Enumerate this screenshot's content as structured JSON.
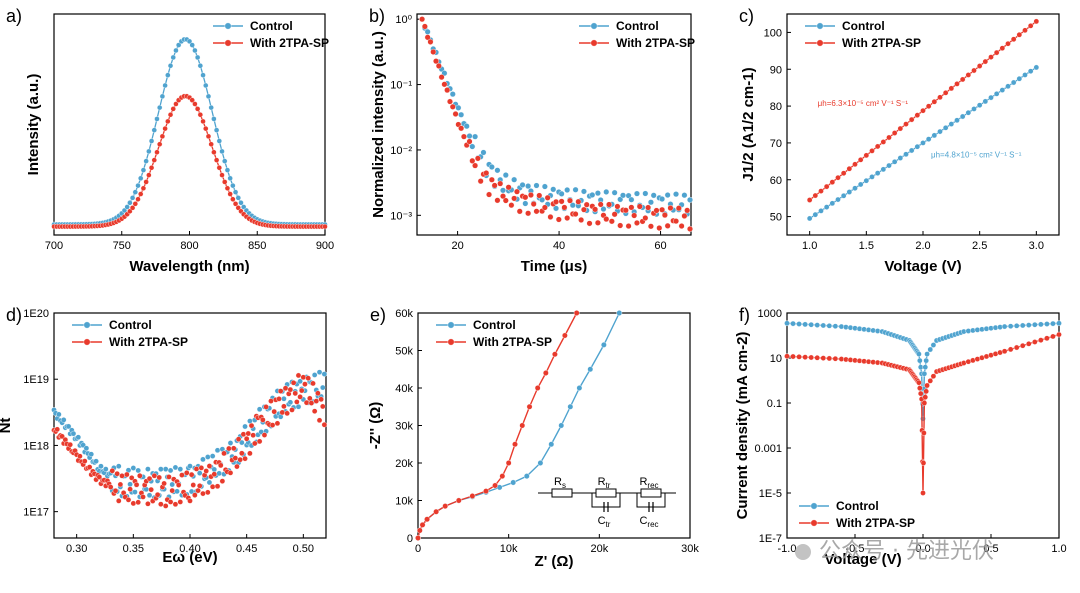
{
  "colors": {
    "control": "#4fa3cf",
    "tpa": "#e83a2c",
    "axis": "#000000"
  },
  "legend_labels": {
    "control": "Control",
    "tpa": "With 2TPA-SP"
  },
  "watermark": "公众号 · 先进光伏",
  "chart_data": [
    {
      "panel": "a)",
      "type": "line",
      "xlabel": "Wavelength (nm)",
      "ylabel": "Intensity (a.u.)",
      "xlim": [
        700,
        900
      ],
      "xticks": [
        700,
        750,
        800,
        850,
        900
      ],
      "xticklabels": [
        "700",
        "750",
        "800",
        "850",
        "900"
      ],
      "ylim": [
        0,
        1.05
      ],
      "legend_position": "top-right",
      "series": [
        {
          "name": "Control",
          "peak_x": 797,
          "peak_y": 0.88,
          "baseline": 0.05,
          "width": 28
        },
        {
          "name": "With 2TPA-SP",
          "peak_x": 797,
          "peak_y": 0.62,
          "baseline": 0.04,
          "width": 28
        }
      ]
    },
    {
      "panel": "b)",
      "type": "scatter",
      "xlabel": "Time (μs)",
      "ylabel": "Normalized intensity (a.u.)",
      "xlim": [
        12,
        66
      ],
      "xticks": [
        20,
        40,
        60
      ],
      "xticklabels": [
        "20",
        "40",
        "60"
      ],
      "ylim": [
        0.0005,
        1.2
      ],
      "ylog": true,
      "yticks": [
        1,
        0.1,
        0.01,
        0.001
      ],
      "yticklabels": [
        "10⁰",
        "10⁻¹",
        "10⁻²",
        "10⁻³"
      ],
      "legend_position": "top-right",
      "series": [
        {
          "name": "Control",
          "t0": 13,
          "tau": 2.2,
          "floor": 0.0015
        },
        {
          "name": "With 2TPA-SP",
          "t0": 13,
          "tau": 1.9,
          "floor": 0.0009
        }
      ]
    },
    {
      "panel": "c)",
      "type": "line",
      "xlabel": "Voltage (V)",
      "ylabel": "J1/2 (A1/2 cm-1)",
      "xlim": [
        0.8,
        3.2
      ],
      "xticks": [
        1.0,
        1.5,
        2.0,
        2.5,
        3.0
      ],
      "xticklabels": [
        "1.0",
        "1.5",
        "2.0",
        "2.5",
        "3.0"
      ],
      "ylim": [
        45,
        105
      ],
      "yticks": [
        50,
        60,
        70,
        80,
        90,
        100
      ],
      "yticklabels": [
        "50",
        "60",
        "70",
        "80",
        "90",
        "100"
      ],
      "legend_position": "top-left",
      "annotations": [
        {
          "series": "With 2TPA-SP",
          "text": "μh=6.3×10⁻⁵ cm² V⁻¹ S⁻¹",
          "x": 1.0,
          "y": 80
        },
        {
          "series": "Control",
          "text": "μh=4.8×10⁻⁵ cm² V⁻¹ S⁻¹",
          "x": 2.0,
          "y": 66
        }
      ],
      "series": [
        {
          "name": "Control",
          "x": [
            1.0,
            3.0
          ],
          "y": [
            49.5,
            90.5
          ]
        },
        {
          "name": "With 2TPA-SP",
          "x": [
            1.0,
            3.0
          ],
          "y": [
            54.5,
            103
          ]
        }
      ]
    },
    {
      "panel": "d)",
      "type": "scatter",
      "xlabel": "Eω (eV)",
      "ylabel": "Nt",
      "xlim": [
        0.28,
        0.52
      ],
      "xticks": [
        0.3,
        0.35,
        0.4,
        0.45,
        0.5
      ],
      "xticklabels": [
        "0.30",
        "0.35",
        "0.40",
        "0.45",
        "0.50"
      ],
      "ylim": [
        4e+16,
        1e+20
      ],
      "ylog": true,
      "yticks": [
        1e+20,
        1e+19,
        1e+18,
        1e+17
      ],
      "yticklabels": [
        "1E20",
        "1E19",
        "1E18",
        "1E17"
      ],
      "legend_position": "top-left",
      "series": [
        {
          "name": "Control",
          "x": [
            0.28,
            0.3,
            0.32,
            0.34,
            0.36,
            0.38,
            0.4,
            0.42,
            0.44,
            0.46,
            0.48,
            0.5,
            0.52
          ],
          "y": [
            3.2e+18,
            1.3e+18,
            4.5e+17,
            2.8e+17,
            2.7e+17,
            2.7e+17,
            3e+17,
            4.5e+17,
            8e+17,
            2e+18,
            4.5e+18,
            7e+18,
            8e+18
          ]
        },
        {
          "name": "With 2TPA-SP",
          "x": [
            0.28,
            0.3,
            0.32,
            0.34,
            0.36,
            0.38,
            0.4,
            0.42,
            0.44,
            0.46,
            0.48,
            0.5,
            0.52
          ],
          "y": [
            1.8e+18,
            7e+17,
            3e+17,
            2.2e+17,
            2.2e+17,
            2e+17,
            2.4e+17,
            3.5e+17,
            6.5e+17,
            1.8e+18,
            4e+18,
            8e+18,
            3e+18
          ]
        }
      ]
    },
    {
      "panel": "e)",
      "type": "line",
      "xlabel": "Z' (Ω)",
      "ylabel": "-Z'' (Ω)",
      "xlim": [
        0,
        30000
      ],
      "xticks": [
        0,
        10000,
        20000,
        30000
      ],
      "xticklabels": [
        "0",
        "10k",
        "20k",
        "30k"
      ],
      "ylim": [
        0,
        60000
      ],
      "yticks": [
        0,
        10000,
        20000,
        30000,
        40000,
        50000,
        60000
      ],
      "yticklabels": [
        "0",
        "10k",
        "20k",
        "30k",
        "40k",
        "50k",
        "60k"
      ],
      "legend_position": "top-left",
      "circuit_labels": [
        "Rs",
        "Rtr",
        "Rrec",
        "Ctr",
        "Crec"
      ],
      "series": [
        {
          "name": "Control",
          "x": [
            0,
            200,
            500,
            1000,
            2000,
            3000,
            4500,
            6000,
            7500,
            9000,
            10500,
            12000,
            13500,
            14700,
            15800,
            16800,
            17800,
            19000,
            20500,
            22200
          ],
          "y": [
            0,
            2000,
            3500,
            5000,
            7000,
            8500,
            10000,
            11000,
            12200,
            13500,
            14800,
            16500,
            20000,
            25000,
            30000,
            35000,
            40000,
            45000,
            51500,
            60000
          ]
        },
        {
          "name": "With 2TPA-SP",
          "x": [
            0,
            200,
            500,
            1000,
            2000,
            3000,
            4500,
            6000,
            7500,
            8500,
            9300,
            10000,
            10700,
            11500,
            12300,
            13200,
            14100,
            15100,
            16200,
            17500
          ],
          "y": [
            0,
            2000,
            3500,
            5000,
            7000,
            8500,
            10000,
            11200,
            12500,
            14000,
            16500,
            20000,
            25000,
            30000,
            35000,
            40000,
            44000,
            49000,
            54000,
            60000
          ]
        }
      ]
    },
    {
      "panel": "f)",
      "type": "line",
      "xlabel": "Voltage (V)",
      "ylabel": "Current density (mA cm-2)",
      "xlim": [
        -1.0,
        1.0
      ],
      "xticks": [
        -1.0,
        -0.5,
        0.0,
        0.5,
        1.0
      ],
      "xticklabels": [
        "-1.0",
        "-0.5",
        "0.0",
        "0.5",
        "1.0"
      ],
      "ylim": [
        1e-07,
        1000
      ],
      "ylog": true,
      "yticks": [
        1000,
        10,
        0.1,
        0.001,
        1e-05,
        1e-07
      ],
      "yticklabels": [
        "1000",
        "10",
        "0.1",
        "0.001",
        "1E-5",
        "1E-7"
      ],
      "legend_position": "bottom-left",
      "series": [
        {
          "name": "Control",
          "x": [
            -1.0,
            -0.6,
            -0.3,
            -0.1,
            -0.03,
            -0.01,
            0.0,
            0.01,
            0.03,
            0.1,
            0.3,
            0.6,
            1.0
          ],
          "y": [
            350,
            250,
            150,
            60,
            15,
            2,
            0.02,
            2,
            15,
            60,
            150,
            250,
            350
          ]
        },
        {
          "name": "With 2TPA-SP",
          "x": [
            -1.0,
            -0.6,
            -0.3,
            -0.1,
            -0.03,
            -0.01,
            0.0,
            0.01,
            0.03,
            0.1,
            0.3,
            0.6,
            1.0
          ],
          "y": [
            12,
            9,
            6,
            3,
            0.8,
            0.15,
            1e-05,
            0.1,
            0.6,
            2.5,
            6,
            20,
            110
          ]
        }
      ]
    }
  ]
}
